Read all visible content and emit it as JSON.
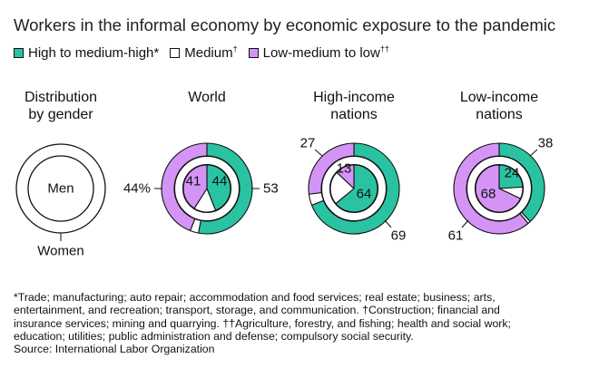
{
  "title": "Workers in the informal economy by economic exposure to the pandemic",
  "legend": [
    {
      "label": "High to medium-high",
      "mark": "*",
      "color": "#2ac3a2"
    },
    {
      "label": "Medium",
      "mark": "†",
      "color": "#ffffff"
    },
    {
      "label": "Low-medium to low",
      "mark": "††",
      "color": "#d494f5"
    }
  ],
  "gender_panel": {
    "title_lines": [
      "Distribution",
      "by gender"
    ],
    "inner_label": "Men",
    "outer_label": "Women"
  },
  "chart_data": [
    {
      "type": "pie",
      "title_lines": [
        "World"
      ],
      "ring": "outer",
      "group": "Women",
      "slices": [
        {
          "category": "High to medium-high",
          "value": 53
        },
        {
          "category": "Medium",
          "value": 3
        },
        {
          "category": "Low-medium to low",
          "value": 44
        }
      ],
      "labels": [
        {
          "text": "53",
          "category": "High to medium-high"
        },
        {
          "text": "44%",
          "category": "Low-medium to low"
        }
      ]
    },
    {
      "type": "pie",
      "title_lines": [
        "World"
      ],
      "ring": "inner",
      "group": "Men",
      "slices": [
        {
          "category": "High to medium-high",
          "value": 44
        },
        {
          "category": "Medium",
          "value": 15
        },
        {
          "category": "Low-medium to low",
          "value": 41
        }
      ],
      "labels": [
        {
          "text": "44",
          "category": "High to medium-high"
        },
        {
          "text": "41",
          "category": "Low-medium to low"
        }
      ]
    },
    {
      "type": "pie",
      "title_lines": [
        "High-income",
        "nations"
      ],
      "ring": "outer",
      "group": "Women",
      "slices": [
        {
          "category": "High to medium-high",
          "value": 69
        },
        {
          "category": "Medium",
          "value": 4
        },
        {
          "category": "Low-medium to low",
          "value": 27
        }
      ],
      "labels": [
        {
          "text": "69",
          "category": "High to medium-high"
        },
        {
          "text": "27",
          "category": "Low-medium to low"
        }
      ]
    },
    {
      "type": "pie",
      "title_lines": [
        "High-income",
        "nations"
      ],
      "ring": "inner",
      "group": "Men",
      "slices": [
        {
          "category": "High to medium-high",
          "value": 64
        },
        {
          "category": "Medium",
          "value": 23
        },
        {
          "category": "Low-medium to low",
          "value": 13
        }
      ],
      "labels": [
        {
          "text": "64",
          "category": "High to medium-high"
        },
        {
          "text": "13",
          "category": "Low-medium to low"
        }
      ]
    },
    {
      "type": "pie",
      "title_lines": [
        "Low-income",
        "nations"
      ],
      "ring": "outer",
      "group": "Women",
      "slices": [
        {
          "category": "High to medium-high",
          "value": 38
        },
        {
          "category": "Medium",
          "value": 1
        },
        {
          "category": "Low-medium to low",
          "value": 61
        }
      ],
      "labels": [
        {
          "text": "38",
          "category": "High to medium-high"
        },
        {
          "text": "61",
          "category": "Low-medium to low"
        }
      ]
    },
    {
      "type": "pie",
      "title_lines": [
        "Low-income",
        "nations"
      ],
      "ring": "inner",
      "group": "Men",
      "slices": [
        {
          "category": "High to medium-high",
          "value": 24
        },
        {
          "category": "Medium",
          "value": 8
        },
        {
          "category": "Low-medium to low",
          "value": 68
        }
      ],
      "labels": [
        {
          "text": "24",
          "category": "High to medium-high"
        },
        {
          "text": "68",
          "category": "Low-medium to low"
        }
      ]
    }
  ],
  "footnote_lines": [
    "*Trade; manufacturing; auto repair; accommodation and food services; real estate; business; arts,",
    "entertainment, and recreation; transport, storage, and communication. †Construction; financial and",
    "insurance services; mining and quarrying. ††Agriculture, forestry, and fishing; health and social work;",
    "education; utilities; public administration and defense; compulsory social security.",
    "Source: International Labor Organization"
  ]
}
